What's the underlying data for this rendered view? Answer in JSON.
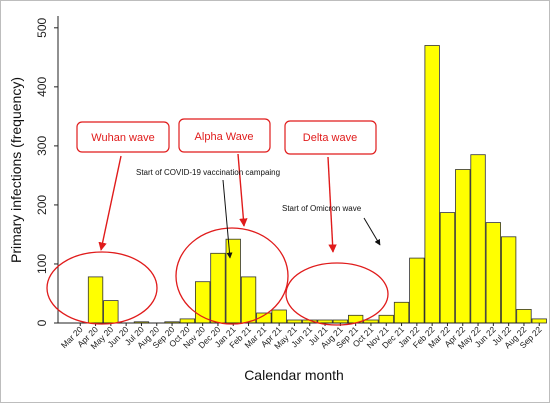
{
  "chart_data": {
    "type": "bar",
    "title": "",
    "xlabel": "Calendar month",
    "ylabel": "Primary infections (frequency)",
    "ylim": [
      0,
      520
    ],
    "yticks": [
      0,
      100,
      200,
      300,
      400,
      500
    ],
    "grid": false,
    "categories": [
      "Mar 20",
      "Apr 20",
      "May 20",
      "Jun 20",
      "Jul 20",
      "Aug 20",
      "Sep 20",
      "Oct 20",
      "Nov 20",
      "Dec 20",
      "Jan 21",
      "Feb 21",
      "Mar 21",
      "Apr 21",
      "May 21",
      "Jun 21",
      "Jul 21",
      "Aug 21",
      "Sep 21",
      "Oct 21",
      "Nov 21",
      "Dec 21",
      "Jan 22",
      "Feb 22",
      "Mar 22",
      "Apr 22",
      "May 22",
      "Jun 22",
      "Jul 22",
      "Aug 22",
      "Sep 22"
    ],
    "values": [
      0,
      78,
      38,
      0,
      2,
      0,
      2,
      7,
      70,
      118,
      142,
      78,
      17,
      22,
      5,
      5,
      5,
      5,
      13,
      5,
      13,
      35,
      110,
      470,
      187,
      260,
      285,
      170,
      146,
      23,
      7
    ],
    "bar_color": "#ffff00",
    "bar_edge_color": "#333333",
    "wave_labels": [
      "Wuhan wave",
      "Alpha Wave",
      "Delta wave"
    ],
    "wave_color": "#e01b1b",
    "annotations": [
      "Start of COVID-19 vaccination campaing",
      "Start of Omicron wave"
    ]
  }
}
